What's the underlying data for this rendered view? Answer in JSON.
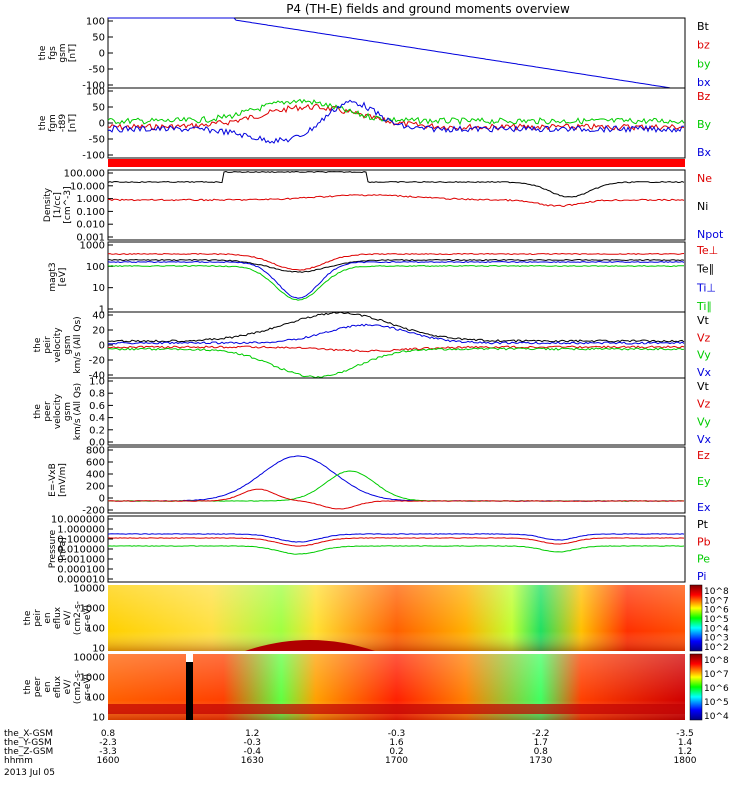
{
  "title": "P4 (TH-E) fields and ground moments overview",
  "colors": {
    "black": "#000000",
    "red": "#dd0000",
    "green": "#00cc00",
    "blue": "#0000dd",
    "bar": "#ff0000"
  },
  "chart_data": [
    {
      "type": "line",
      "ylabel": [
        "the",
        "fgs",
        "gsm",
        "[nT]"
      ],
      "yticks": [
        "100",
        "50",
        "0",
        "-50",
        "-100"
      ],
      "ylim": [
        -100,
        100
      ],
      "legend": [
        {
          "label": "Bt",
          "color": "black"
        },
        {
          "label": "bz",
          "color": "red"
        },
        {
          "label": "by",
          "color": "green"
        },
        {
          "label": "bx",
          "color": "blue"
        }
      ]
    },
    {
      "type": "line",
      "ylabel": [
        "the",
        "fgm",
        "-t89",
        "[nT]"
      ],
      "yticks": [
        "100",
        "50",
        "0",
        "-50",
        "-100"
      ],
      "ylim": [
        -125,
        100
      ],
      "legend": [
        {
          "label": "Bz",
          "color": "red"
        },
        {
          "label": "By",
          "color": "green"
        },
        {
          "label": "Bx",
          "color": "blue"
        }
      ]
    },
    {
      "type": "line",
      "ylabel": [
        "Density",
        "[1/cc]",
        "[cm^-3]"
      ],
      "yticks": [
        "100.000",
        "10.000",
        "1.000",
        "0.100",
        "0.010",
        "0.001"
      ],
      "ylim": [
        0.0005,
        300
      ],
      "scale": "log",
      "legend": [
        {
          "label": "Ne",
          "color": "red"
        },
        {
          "label": "Ni",
          "color": "black"
        },
        {
          "label": "Npot",
          "color": "blue"
        }
      ]
    },
    {
      "type": "line",
      "ylabel": [
        "magt3",
        "[eV]"
      ],
      "yticks": [
        "1000",
        "100",
        "10",
        "1"
      ],
      "ylim": [
        1,
        1500
      ],
      "scale": "log",
      "legend": [
        {
          "label": "Te⊥",
          "color": "red"
        },
        {
          "label": "Te∥",
          "color": "black"
        },
        {
          "label": "Ti⊥",
          "color": "blue"
        },
        {
          "label": "Ti∥",
          "color": "green"
        }
      ]
    },
    {
      "type": "line",
      "ylabel": [
        "the",
        "peir",
        "velocity",
        "gsm",
        "km/s (All Qs)"
      ],
      "yticks": [
        "40",
        "20",
        "0",
        "-20",
        "-40"
      ],
      "ylim": [
        -45,
        45
      ],
      "legend": [
        {
          "label": "Vt",
          "color": "black"
        },
        {
          "label": "Vz",
          "color": "red"
        },
        {
          "label": "Vy",
          "color": "green"
        },
        {
          "label": "Vx",
          "color": "blue"
        }
      ]
    },
    {
      "type": "line",
      "ylabel": [
        "the",
        "peer",
        "velocity",
        "gsm",
        "km/s (All Qs)"
      ],
      "yticks": [
        "1.0",
        "0.8",
        "0.6",
        "0.4",
        "0.2",
        "0.0"
      ],
      "ylim": [
        0,
        1
      ],
      "legend": [
        {
          "label": "Vt",
          "color": "black"
        },
        {
          "label": "Vz",
          "color": "red"
        },
        {
          "label": "Vy",
          "color": "green"
        },
        {
          "label": "Vx",
          "color": "blue"
        }
      ]
    },
    {
      "type": "line",
      "ylabel": [
        "E=-VxB",
        "[mV/m]"
      ],
      "yticks": [
        "800",
        "600",
        "400",
        "200",
        "0",
        "-200"
      ],
      "ylim": [
        -250,
        820
      ],
      "legend": [
        {
          "label": "Ez",
          "color": "red"
        },
        {
          "label": "Ey",
          "color": "green"
        },
        {
          "label": "Ex",
          "color": "blue"
        }
      ]
    },
    {
      "type": "line",
      "ylabel": [
        "Pressure",
        "[nPa]"
      ],
      "yticks": [
        "10.000000",
        "1.000000",
        "0.100000",
        "0.010000",
        "0.001000",
        "0.000100",
        "0.000010"
      ],
      "ylim": [
        5e-06,
        40
      ],
      "scale": "log",
      "legend": [
        {
          "label": "Pt",
          "color": "black"
        },
        {
          "label": "Pb",
          "color": "red"
        },
        {
          "label": "Pe",
          "color": "green"
        },
        {
          "label": "Pi",
          "color": "blue"
        }
      ]
    },
    {
      "type": "heatmap",
      "ylabel": [
        "the",
        "peir",
        "en",
        "eflux",
        "eV/",
        "(cm2-s-",
        "sr-eV)"
      ],
      "yticks": [
        "10000",
        "1000",
        "100",
        "10"
      ],
      "colorbar": [
        "10^8",
        "10^7",
        "10^6",
        "10^5",
        "10^4",
        "10^3",
        "10^2"
      ]
    },
    {
      "type": "heatmap",
      "ylabel": [
        "the",
        "peer",
        "en",
        "eflux",
        "eV/",
        "(cm2-s-",
        "sr-eV)"
      ],
      "yticks": [
        "10000",
        "1000",
        "100",
        "10"
      ],
      "colorbar": [
        "10^8",
        "10^7",
        "10^6",
        "10^5",
        "10^4"
      ]
    }
  ],
  "xaxis": {
    "rows": [
      {
        "label": "the_X-GSM",
        "values": [
          "0.8",
          "1.2",
          "-0.3",
          "-2.2",
          "-3.5"
        ]
      },
      {
        "label": "the_Y-GSM",
        "values": [
          "-2.3",
          "-0.3",
          "1.6",
          "1.7",
          "1.4"
        ]
      },
      {
        "label": "the_Z-GSM",
        "values": [
          "-3.3",
          "-0.4",
          "0.2",
          "0.8",
          "1.2"
        ]
      },
      {
        "label": "hhmm",
        "values": [
          "1600",
          "1630",
          "1700",
          "1730",
          "1800"
        ]
      }
    ],
    "date": "2013 Jul 05"
  }
}
